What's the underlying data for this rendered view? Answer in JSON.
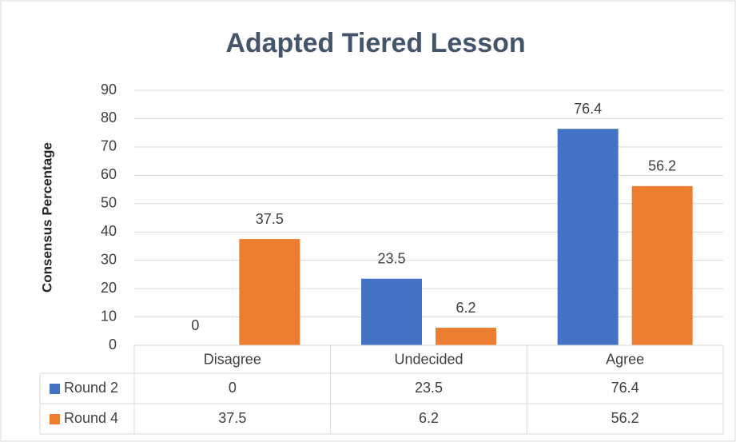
{
  "chart_data": {
    "type": "bar",
    "title": "Adapted Tiered Lesson",
    "y_label": "Consensus Percentage",
    "categories": [
      "Disagree",
      "Undecided",
      "Agree"
    ],
    "series": [
      {
        "name": "Round 2",
        "color": "#4472c4",
        "values": [
          0,
          23.5,
          76.4
        ]
      },
      {
        "name": "Round 4",
        "color": "#ed7d31",
        "values": [
          37.5,
          6.2,
          56.2
        ]
      }
    ],
    "ylim": [
      0,
      90
    ],
    "yticks": [
      0,
      10,
      20,
      30,
      40,
      50,
      60,
      70,
      80,
      90
    ],
    "grid": true,
    "data_table": true
  }
}
